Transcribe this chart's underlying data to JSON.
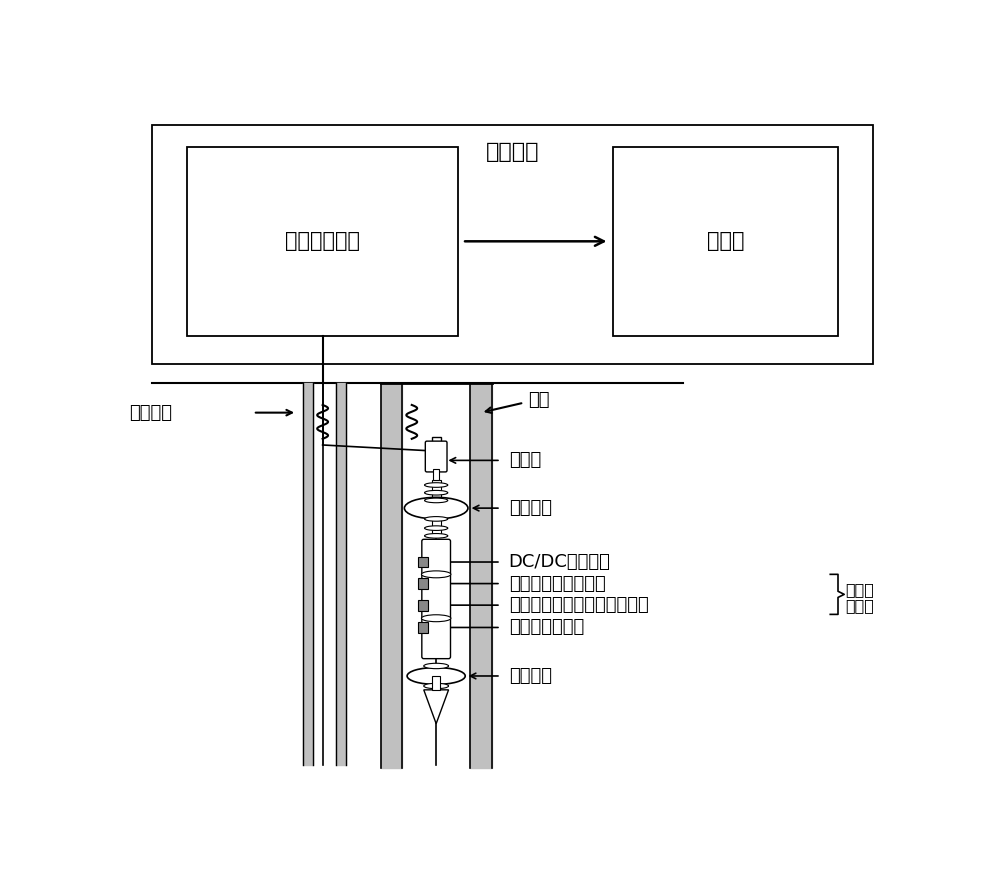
{
  "bg_color": "#ffffff",
  "line_color": "#000000",
  "gray_color": "#c0c0c0",
  "title_winch": "测井绞车",
  "label_ground": "地面处理装置",
  "label_upper": "上位机",
  "label_cable": "单芯电缆",
  "label_casing": "套管",
  "label_马笼头": "马笼头",
  "label_上扶正器": "上扶正器",
  "label_DCDC": "DC/DC电源模块",
  "label_遥传": "遥传模块、控制电路",
  "label_发射": "发射电路、阵列加权接收电路",
  "label_多线圈": "多线圈阵列探头",
  "label_下扶正器": "下扶正器",
  "label_硬件电": "硬件电",
  "label_路模块": "路模块",
  "fontsize": 15,
  "fontsize_small": 13
}
